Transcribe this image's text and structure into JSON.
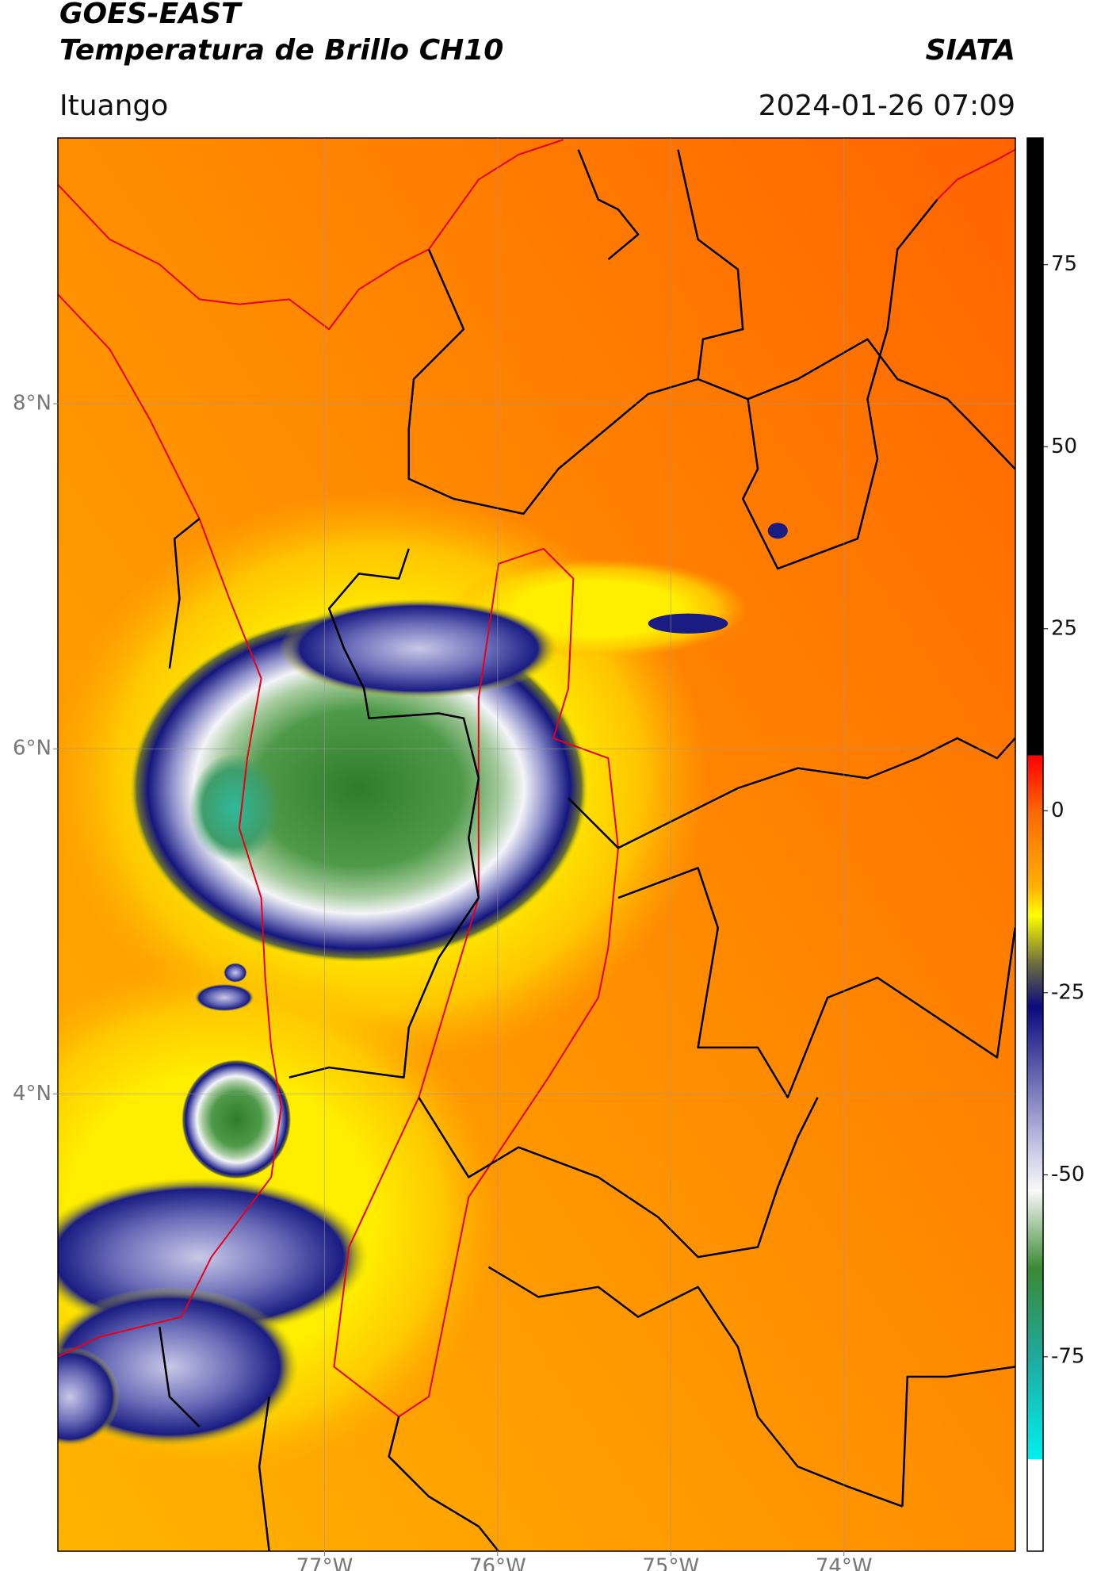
{
  "chart_data": {
    "type": "map",
    "title": "GOES-EAST",
    "subtitle": "Temperatura de Brillo CH10",
    "source": "SIATA",
    "location": "Ituango",
    "timestamp": "2024-01-26 07:09",
    "xlim": [
      -78.54,
      -73.01
    ],
    "ylim": [
      1.35,
      9.54
    ],
    "xticks": [
      {
        "value": -77,
        "label": "77°W"
      },
      {
        "value": -76,
        "label": "76°W"
      },
      {
        "value": -75,
        "label": "75°W"
      },
      {
        "value": -74,
        "label": "74°W"
      }
    ],
    "yticks": [
      {
        "value": 8,
        "label": "8°N"
      },
      {
        "value": 6,
        "label": "6°N"
      },
      {
        "value": 4,
        "label": "4°N"
      }
    ],
    "grid": true,
    "colorbar": {
      "lim": [
        -101.7,
        92.4
      ],
      "ticks": [
        75,
        50,
        25,
        0,
        -25,
        -50,
        -75
      ]
    }
  }
}
